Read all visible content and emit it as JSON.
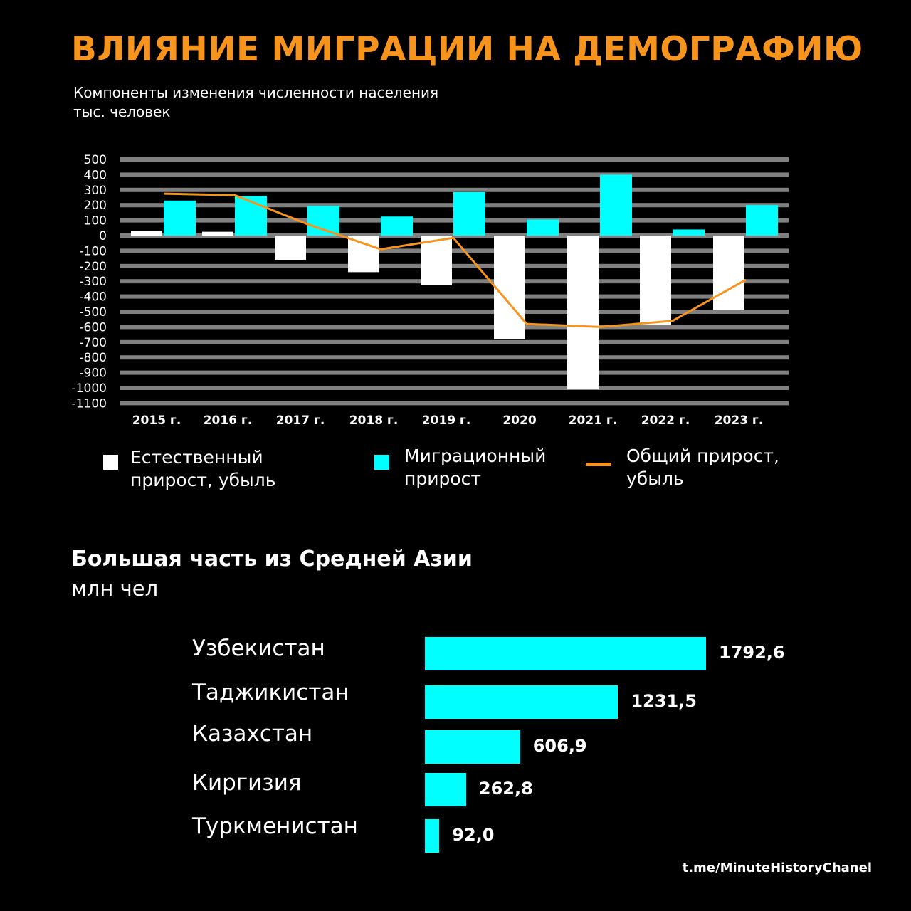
{
  "title": "ВЛИЯНИЕ МИГРАЦИИ НА ДЕМОГРАФИЮ",
  "source": "t.me/MinuteHistoryChanel",
  "colors": {
    "natural": "#ffffff",
    "migration": "#00ffff",
    "total": "#f7941d",
    "grid": "#808080"
  },
  "chart_data": [
    {
      "type": "bar",
      "title": "Компоненты изменения численности населения",
      "subtitle": "тыс. человек",
      "ylim": [
        -1100,
        500
      ],
      "yticks": [
        "500",
        "400",
        "300",
        "200",
        "100",
        "0",
        "-100",
        "-200",
        "-300",
        "-400",
        "-500",
        "-600",
        "-700",
        "-800",
        "-900",
        "-1000",
        "-1100"
      ],
      "categories": [
        "2015 г.",
        "2016 г.",
        "2017 г.",
        "2018 г.",
        "2019 г.",
        "2020",
        "2021 г.",
        "2022 г.",
        "2023 г."
      ],
      "grid": true,
      "series": [
        {
          "name": "Естественный прирост, убыль",
          "type": "bar",
          "values": [
            32,
            25,
            -163,
            -240,
            -325,
            -680,
            -1010,
            -585,
            -490
          ]
        },
        {
          "name": "Миграционный прирост",
          "type": "bar",
          "values": [
            230,
            260,
            195,
            125,
            285,
            105,
            400,
            40,
            200
          ]
        },
        {
          "name": "Общий прирост, убыль",
          "type": "line",
          "values": [
            275,
            265,
            75,
            -90,
            -15,
            -580,
            -600,
            -560,
            -290
          ]
        }
      ],
      "legend": {
        "placement": "bottom",
        "items": [
          "Естественный\nприрост, убыль",
          "Миграционный\nприрост",
          "Общий прирост,\nубыль"
        ]
      }
    },
    {
      "type": "bar",
      "orientation": "horizontal",
      "title": "Большая часть из Средней Азии",
      "subtitle": "млн чел",
      "categories": [
        "Узбекистан",
        "Таджикистан",
        "Казахстан",
        "Киргизия",
        "Туркменистан"
      ],
      "values": [
        1792.6,
        1231.5,
        606.9,
        262.8,
        92.0
      ],
      "labels": [
        "1792,6",
        "1231,5",
        "606,9",
        "262,8",
        "92,0"
      ]
    }
  ]
}
